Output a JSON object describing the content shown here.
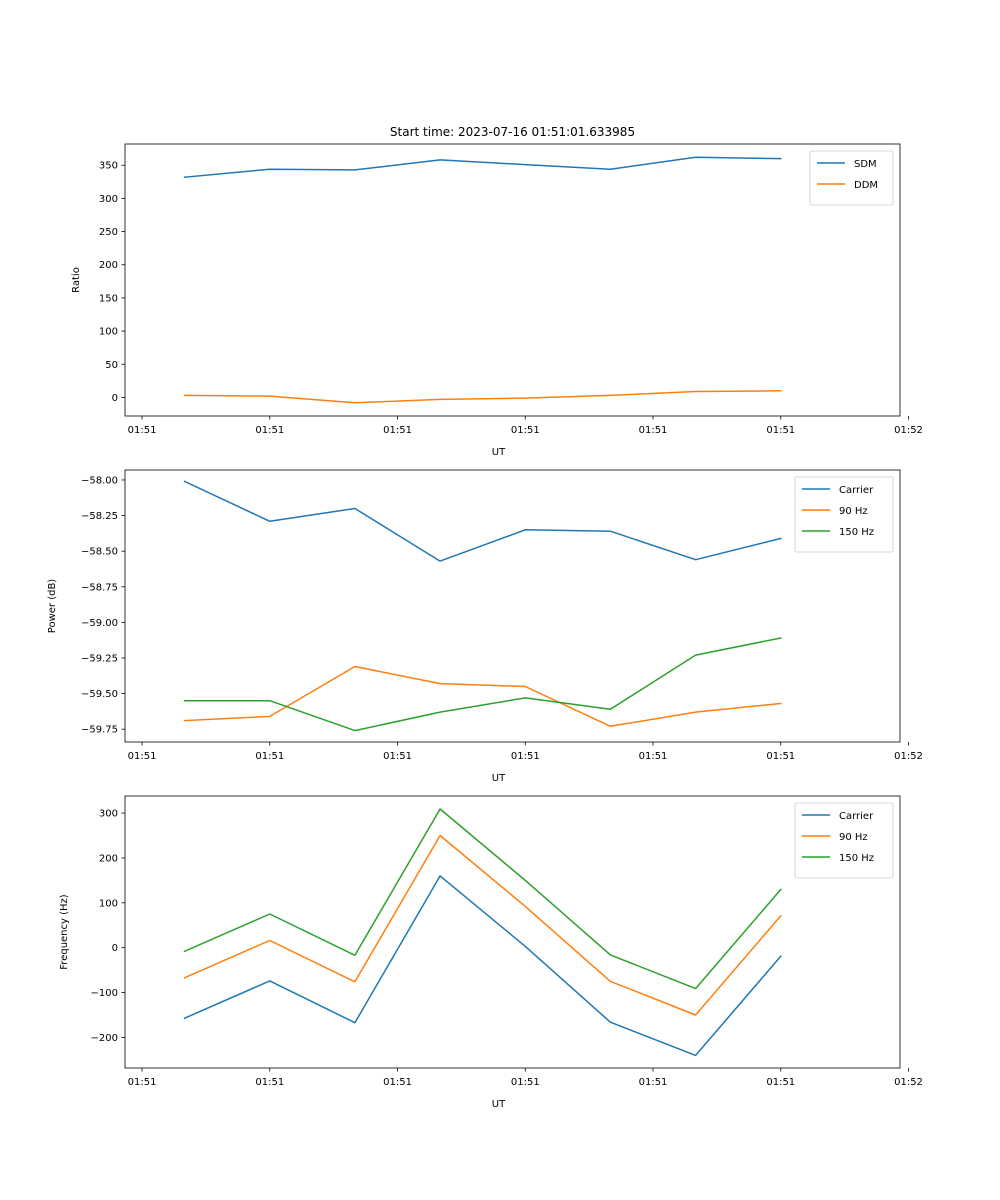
{
  "chart_data": [
    {
      "type": "line",
      "title": "Start time: 2023-07-16 01:51:01.633985",
      "xlabel": "UT",
      "ylabel": "Ratio",
      "x": [
        1,
        2,
        3,
        4,
        5,
        6,
        7,
        8
      ],
      "xlim": [
        0.3,
        9.4
      ],
      "x_ticks": [
        0.5,
        2,
        3.5,
        5,
        6.5,
        8,
        9.5
      ],
      "x_tick_labels": [
        "01:51",
        "01:51",
        "01:51",
        "01:51",
        "01:51",
        "01:51",
        "01:52"
      ],
      "ylim": [
        -28,
        382
      ],
      "y_ticks": [
        0,
        50,
        100,
        150,
        200,
        250,
        300,
        350
      ],
      "y_tick_labels": [
        "0",
        "50",
        "100",
        "150",
        "200",
        "250",
        "300",
        "350"
      ],
      "legend": "top-right",
      "series": [
        {
          "name": "SDM",
          "color": "#1f77b4",
          "values": [
            332,
            344,
            343,
            358,
            351,
            344,
            362,
            360
          ]
        },
        {
          "name": "DDM",
          "color": "#ff7f0e",
          "values": [
            3,
            2,
            -8,
            -3,
            -1,
            3,
            9,
            10
          ]
        }
      ]
    },
    {
      "type": "line",
      "title": "",
      "xlabel": "UT",
      "ylabel": "Power (dB)",
      "x": [
        1,
        2,
        3,
        4,
        5,
        6,
        7,
        8
      ],
      "xlim": [
        0.3,
        9.4
      ],
      "x_ticks": [
        0.5,
        2,
        3.5,
        5,
        6.5,
        8,
        9.5
      ],
      "x_tick_labels": [
        "01:51",
        "01:51",
        "01:51",
        "01:51",
        "01:51",
        "01:51",
        "01:52"
      ],
      "ylim": [
        -59.84,
        -57.93
      ],
      "y_ticks": [
        -59.75,
        -59.5,
        -59.25,
        -59.0,
        -58.75,
        -58.5,
        -58.25,
        -58.0
      ],
      "y_tick_labels": [
        "−59.75",
        "−59.50",
        "−59.25",
        "−59.00",
        "−58.75",
        "−58.50",
        "−58.25",
        "−58.00"
      ],
      "legend": "top-right",
      "series": [
        {
          "name": "Carrier",
          "color": "#1f77b4",
          "values": [
            -58.01,
            -58.29,
            -58.2,
            -58.57,
            -58.35,
            -58.36,
            -58.56,
            -58.41
          ]
        },
        {
          "name": "90 Hz",
          "color": "#ff7f0e",
          "values": [
            -59.69,
            -59.66,
            -59.31,
            -59.43,
            -59.45,
            -59.73,
            -59.63,
            -59.57
          ]
        },
        {
          "name": "150 Hz",
          "color": "#2ca02c",
          "values": [
            -59.55,
            -59.55,
            -59.76,
            -59.63,
            -59.53,
            -59.61,
            -59.23,
            -59.11
          ]
        }
      ]
    },
    {
      "type": "line",
      "title": "",
      "xlabel": "UT",
      "ylabel": "Frequency (Hz)",
      "x": [
        1,
        2,
        3,
        4,
        5,
        6,
        7,
        8
      ],
      "xlim": [
        0.3,
        9.4
      ],
      "x_ticks": [
        0.5,
        2,
        3.5,
        5,
        6.5,
        8,
        9.5
      ],
      "x_tick_labels": [
        "01:51",
        "01:51",
        "01:51",
        "01:51",
        "01:51",
        "01:51",
        "01:52"
      ],
      "ylim": [
        -268,
        338
      ],
      "y_ticks": [
        -200,
        -100,
        0,
        100,
        200,
        300
      ],
      "y_tick_labels": [
        "−200",
        "−100",
        "0",
        "100",
        "200",
        "300"
      ],
      "legend": "top-right",
      "series": [
        {
          "name": "Carrier",
          "color": "#1f77b4",
          "values": [
            -157,
            -74,
            -167,
            160,
            3,
            -166,
            -240,
            -19
          ]
        },
        {
          "name": "90 Hz",
          "color": "#ff7f0e",
          "values": [
            -67,
            16,
            -76,
            250,
            92,
            -75,
            -150,
            71
          ]
        },
        {
          "name": "150 Hz",
          "color": "#2ca02c",
          "values": [
            -8,
            75,
            -17,
            309,
            150,
            -16,
            -91,
            130
          ]
        }
      ]
    }
  ]
}
